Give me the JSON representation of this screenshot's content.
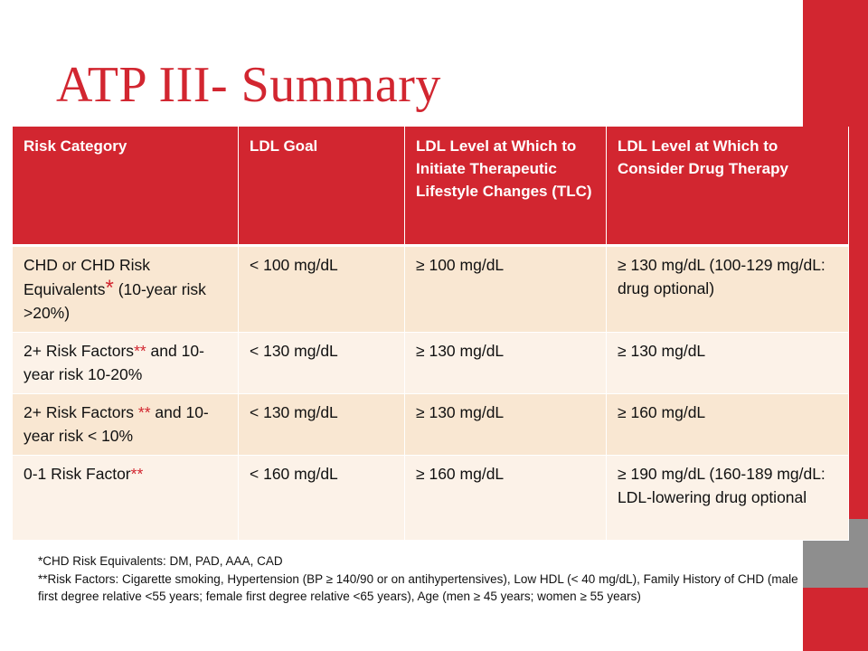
{
  "slide": {
    "title": "ATP III- Summary",
    "accent_color": "#d22630",
    "side_gray_color": "#8e8e8e"
  },
  "table": {
    "headers": [
      "Risk Category",
      "LDL Goal",
      "LDL Level at Which to Initiate Therapeutic Lifestyle Changes (TLC)",
      "LDL Level at Which to Consider  Drug Therapy"
    ],
    "rows": [
      {
        "category_pre": "CHD or CHD Risk Equivalents",
        "category_star": "*",
        "category_post": " (10-year risk >20%)",
        "goal": "< 100 mg/dL",
        "tlc": "≥ 100 mg/dL",
        "drug": "≥ 130 mg/dL (100-129 mg/dL: drug optional)"
      },
      {
        "category_pre": "2+ Risk Factors",
        "category_star": "**",
        "category_post": " and 10-year risk 10-20%",
        "goal": "< 130 mg/dL",
        "tlc": "≥ 130 mg/dL",
        "drug": "≥ 130 mg/dL"
      },
      {
        "category_pre": "2+ Risk Factors ",
        "category_star": "**",
        "category_post": " and 10-year risk < 10%",
        "goal": "< 130 mg/dL",
        "tlc": "≥ 130 mg/dL",
        "drug": "≥ 160 mg/dL"
      },
      {
        "category_pre": "0-1 Risk Factor",
        "category_star": "**",
        "category_post": "",
        "goal": "< 160 mg/dL",
        "tlc": "≥ 160 mg/dL",
        "drug": "≥ 190 mg/dL (160-189 mg/dL: LDL-lowering drug optional"
      }
    ]
  },
  "footnotes": {
    "chd_equivalents": "*CHD Risk Equivalents: DM, PAD, AAA, CAD",
    "risk_factors": "**Risk Factors: Cigarette smoking, Hypertension (BP ≥ 140/90 or on antihypertensives), Low HDL (< 40 mg/dL), Family History of CHD (male first degree relative <55 years; female first degree relative <65 years), Age (men ≥ 45 years; women ≥ 55 years)"
  }
}
